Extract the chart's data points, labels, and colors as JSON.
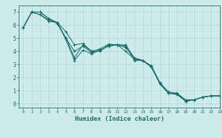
{
  "xlabel": "Humidex (Indice chaleur)",
  "xlim": [
    -0.5,
    23
  ],
  "ylim": [
    -0.3,
    7.5
  ],
  "background_color": "#ceeaea",
  "grid_color": "#a8d8d8",
  "line_color": "#1a6b6b",
  "series": [
    [
      5.8,
      7.0,
      6.8,
      6.3,
      6.2,
      4.9,
      3.3,
      4.1,
      3.8,
      4.1,
      4.4,
      4.5,
      4.4,
      3.3,
      3.3,
      2.8,
      1.6,
      0.8,
      0.8,
      0.2,
      0.3,
      0.5,
      0.6,
      0.6
    ],
    [
      5.8,
      7.0,
      7.0,
      6.5,
      6.2,
      5.0,
      3.5,
      4.5,
      4.0,
      4.2,
      4.55,
      4.5,
      4.3,
      3.5,
      3.3,
      2.9,
      1.6,
      0.9,
      0.8,
      0.3,
      0.3,
      0.5,
      0.6,
      0.6
    ],
    [
      5.8,
      7.0,
      6.8,
      6.4,
      6.2,
      5.5,
      4.5,
      4.6,
      4.0,
      4.0,
      4.5,
      4.5,
      4.5,
      3.5,
      3.3,
      2.8,
      1.5,
      0.8,
      0.75,
      0.2,
      0.3,
      0.5,
      0.6,
      0.6
    ],
    [
      5.8,
      7.0,
      7.0,
      6.5,
      6.1,
      5.0,
      4.0,
      4.4,
      3.9,
      4.1,
      4.4,
      4.5,
      4.0,
      3.4,
      3.3,
      2.8,
      1.6,
      0.8,
      0.7,
      0.2,
      0.3,
      0.5,
      0.6,
      0.6
    ]
  ],
  "yticks": [
    0,
    1,
    2,
    3,
    4,
    5,
    6,
    7
  ],
  "xticks": [
    0,
    1,
    2,
    3,
    4,
    5,
    6,
    7,
    8,
    9,
    10,
    11,
    12,
    13,
    14,
    15,
    16,
    17,
    18,
    19,
    20,
    21,
    22,
    23
  ],
  "marker": "+",
  "markersize": 3.5,
  "linewidth": 0.75
}
